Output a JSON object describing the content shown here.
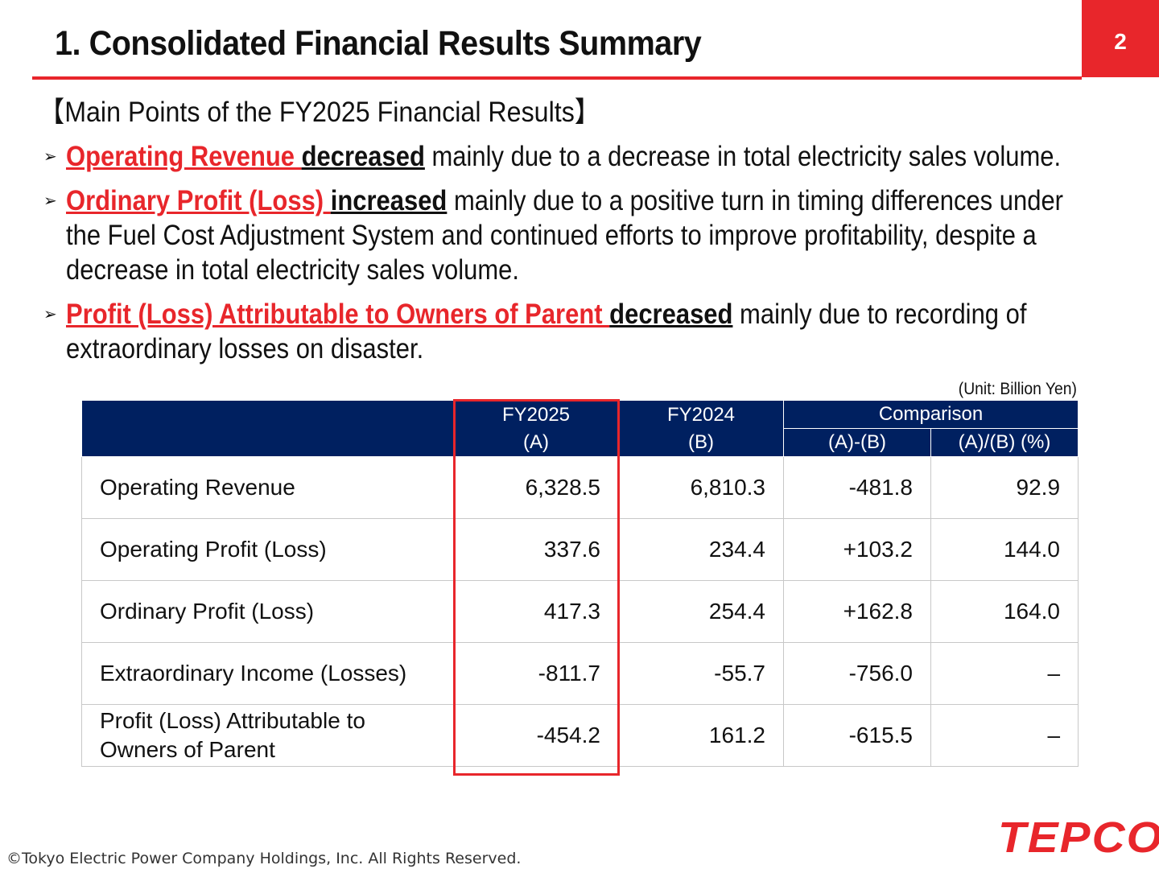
{
  "header": {
    "title": "1. Consolidated Financial Results Summary",
    "page_number": "2"
  },
  "points": {
    "heading": "【Main Points of the FY2025 Financial Results】",
    "bullets": [
      {
        "subject": "Operating Revenue ",
        "verb": "decreased",
        "rest": " mainly due to a decrease in total electricity sales volume."
      },
      {
        "subject": "Ordinary Profit (Loss) ",
        "verb": "increased",
        "rest": " mainly due to a positive turn in timing differences under the Fuel Cost Adjustment System and continued efforts to improve profitability, despite a decrease in total electricity sales volume."
      },
      {
        "subject": "Profit (Loss) Attributable to Owners of Parent ",
        "verb": "decreased",
        "rest": " mainly due to recording of extraordinary losses on disaster."
      }
    ]
  },
  "table": {
    "unit": "(Unit: Billion Yen)",
    "headers": {
      "fy2025": "FY2025",
      "fy2025_sub": "(A)",
      "fy2024": "FY2024",
      "fy2024_sub": "(B)",
      "comparison": "Comparison",
      "diff": "(A)-(B)",
      "ratio": "(A)/(B) (%)"
    },
    "rows": [
      {
        "label": "Operating Revenue",
        "a": "6,328.5",
        "b": "6,810.3",
        "diff": "-481.8",
        "ratio": "92.9"
      },
      {
        "label": "Operating Profit (Loss)",
        "a": "337.6",
        "b": "234.4",
        "diff": "+103.2",
        "ratio": "144.0"
      },
      {
        "label": "Ordinary Profit (Loss)",
        "a": "417.3",
        "b": "254.4",
        "diff": "+162.8",
        "ratio": "164.0"
      },
      {
        "label": "Extraordinary Income (Losses)",
        "a": "-811.7",
        "b": "-55.7",
        "diff": "-756.0",
        "ratio": "–"
      },
      {
        "label_line1": "Profit (Loss) Attributable to",
        "label_line2": "Owners of Parent",
        "a": "-454.2",
        "b": "161.2",
        "diff": "-615.5",
        "ratio": "–"
      }
    ]
  },
  "footer": {
    "copyright": "©Tokyo Electric Power Company Holdings, Inc. All Rights Reserved.",
    "logo": "TEPCO"
  },
  "colors": {
    "accent_red": "#e8262b",
    "header_navy": "#002060"
  },
  "icons": {
    "bullet": "arrowhead-bullet-icon"
  }
}
